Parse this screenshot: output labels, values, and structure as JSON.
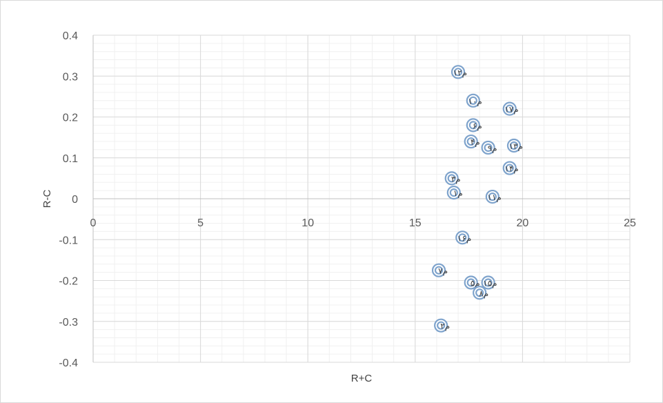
{
  "chart_data": {
    "type": "scatter",
    "xlabel": "R+C",
    "ylabel": "R-C",
    "xlim": [
      0,
      25
    ],
    "ylim": [
      -0.4,
      0.4
    ],
    "x_ticks": [
      0,
      5,
      10,
      15,
      20,
      25
    ],
    "y_ticks": [
      -0.4,
      -0.3,
      -0.2,
      -0.1,
      0,
      0.1,
      0.2,
      0.3,
      0.4
    ],
    "x_tick_labels": [
      "0",
      "5",
      "10",
      "15",
      "20",
      "25"
    ],
    "y_tick_labels": [
      "-0.4",
      "-0.3",
      "-0.2",
      "-0.1",
      "0",
      "0.1",
      "0.2",
      "0.3",
      "0.4"
    ],
    "grid": true,
    "marker_color": "#7ea3cc",
    "points": [
      {
        "label": "م۱",
        "x": 16.8,
        "y": 0.015
      },
      {
        "label": "م۲",
        "x": 16.2,
        "y": -0.31
      },
      {
        "label": "م۳",
        "x": 16.7,
        "y": 0.05
      },
      {
        "label": "م۴",
        "x": 17.6,
        "y": 0.14
      },
      {
        "label": "م۵",
        "x": 17.6,
        "y": -0.205
      },
      {
        "label": "م۶",
        "x": 17.7,
        "y": 0.18
      },
      {
        "label": "م۷",
        "x": 16.1,
        "y": -0.175
      },
      {
        "label": "م۸",
        "x": 18.0,
        "y": -0.23
      },
      {
        "label": "م۹",
        "x": 18.4,
        "y": 0.125
      },
      {
        "label": "م۱۰",
        "x": 17.7,
        "y": 0.24
      },
      {
        "label": "م۱۱",
        "x": 18.6,
        "y": 0.005
      },
      {
        "label": "م۱۲",
        "x": 17.0,
        "y": 0.31
      },
      {
        "label": "م۱۳",
        "x": 19.6,
        "y": 0.13
      },
      {
        "label": "م۱۴",
        "x": 19.4,
        "y": 0.075
      },
      {
        "label": "م۱۵",
        "x": 18.4,
        "y": -0.205
      },
      {
        "label": "م۱۶",
        "x": 17.2,
        "y": -0.095
      },
      {
        "label": "م۱۷",
        "x": 19.4,
        "y": 0.22
      }
    ]
  }
}
